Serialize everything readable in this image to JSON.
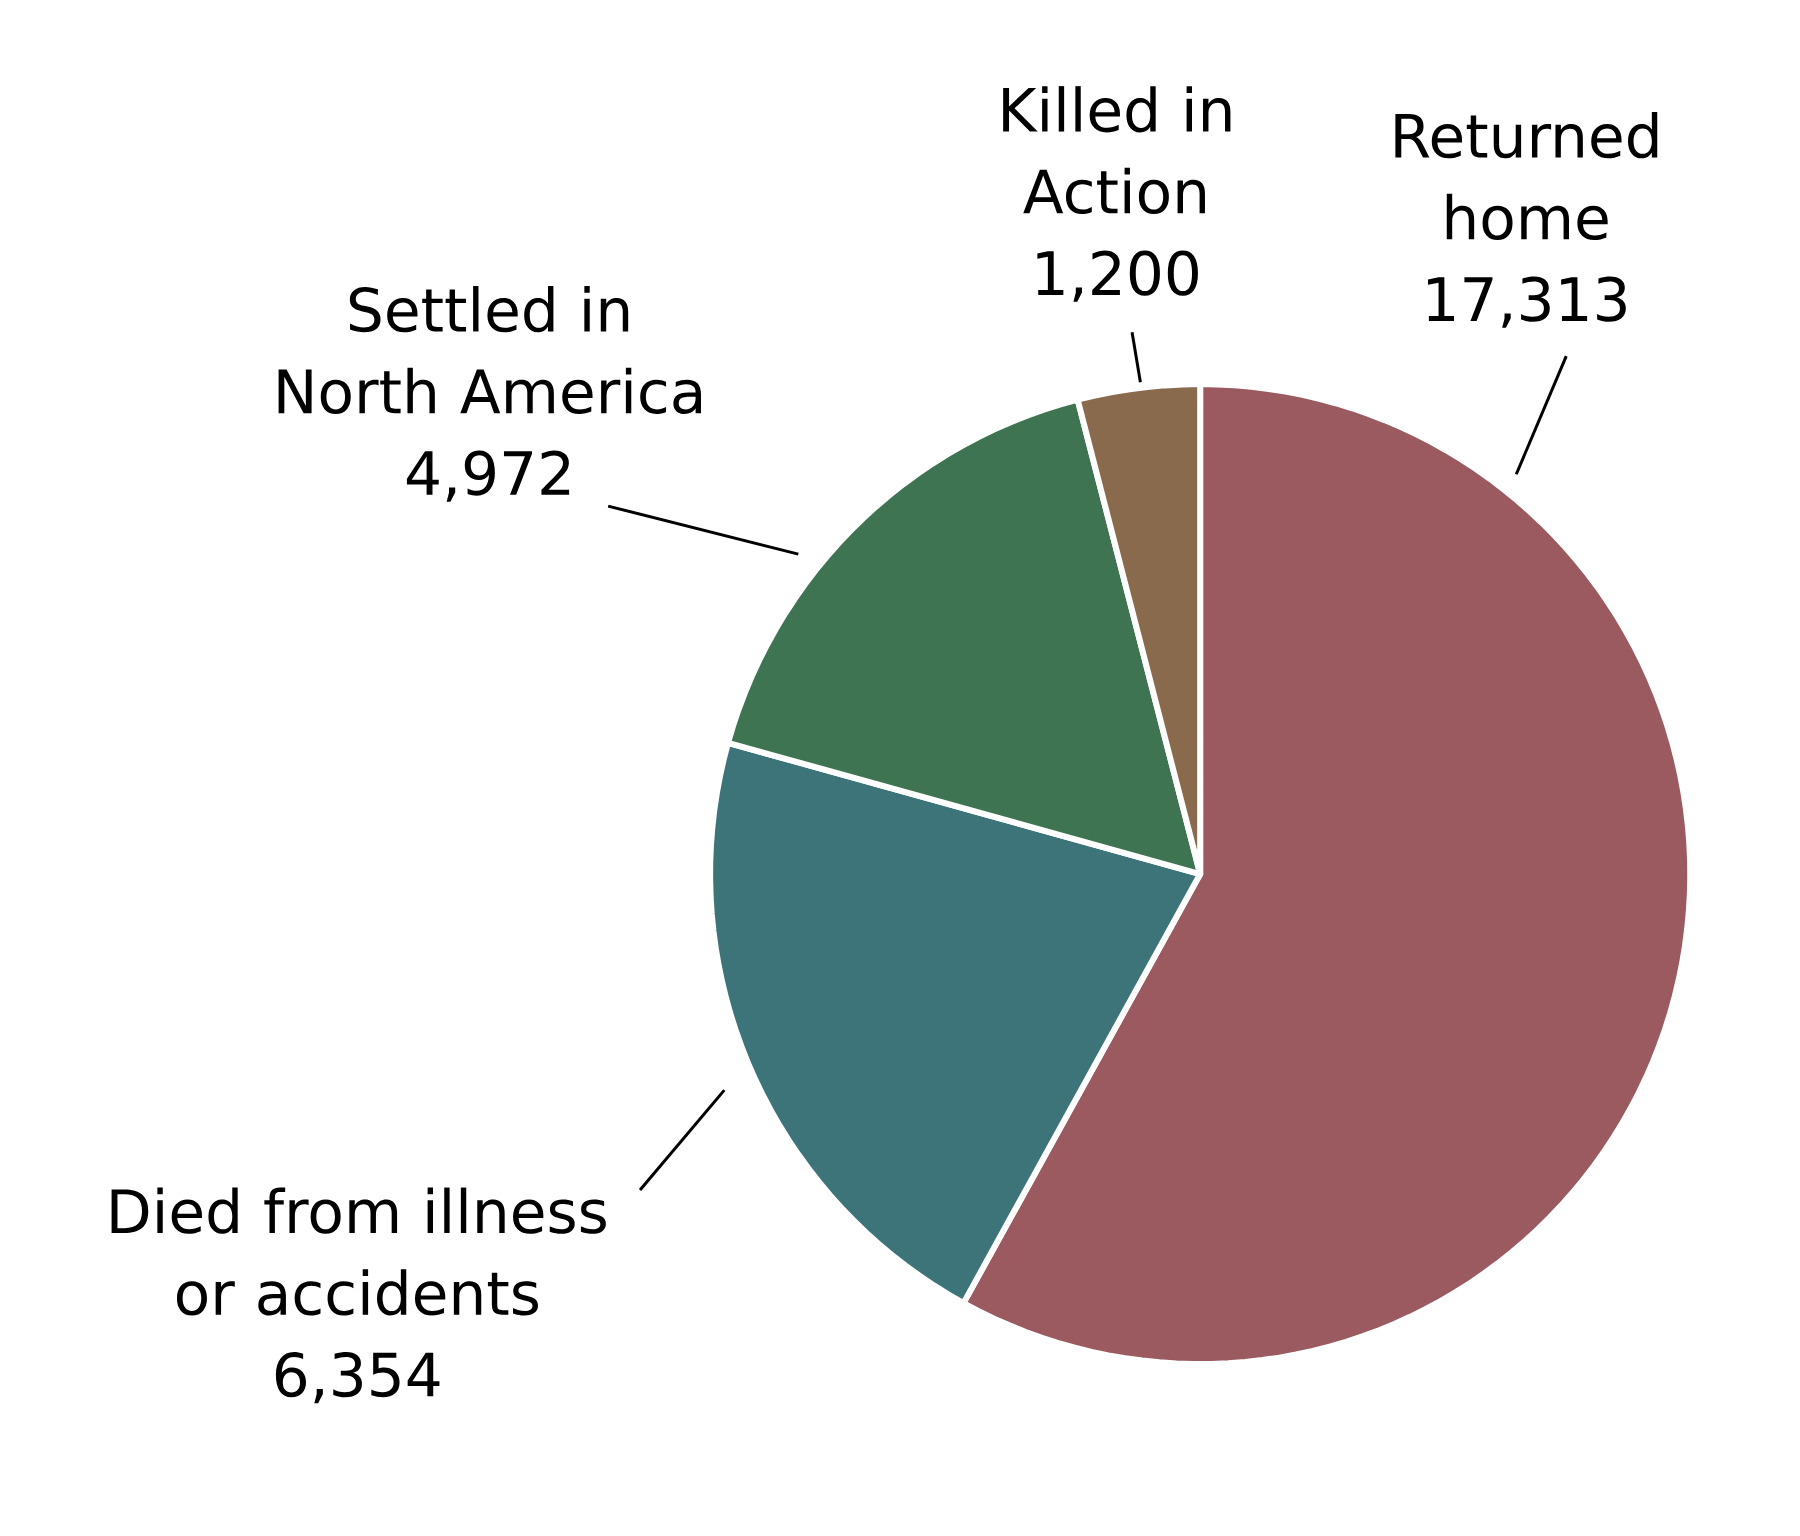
{
  "chart_data": {
    "type": "pie",
    "categories": [
      "Returned home",
      "Died from illness or accidents",
      "Settled in North America",
      "Killed in Action"
    ],
    "values": [
      17313,
      6354,
      4972,
      1200
    ],
    "value_labels": [
      "17,313",
      "6,354",
      "4,972",
      "1,200"
    ],
    "colors": [
      "#9a5a5f",
      "#3d7479",
      "#3f7452",
      "#8a6a4c"
    ]
  }
}
